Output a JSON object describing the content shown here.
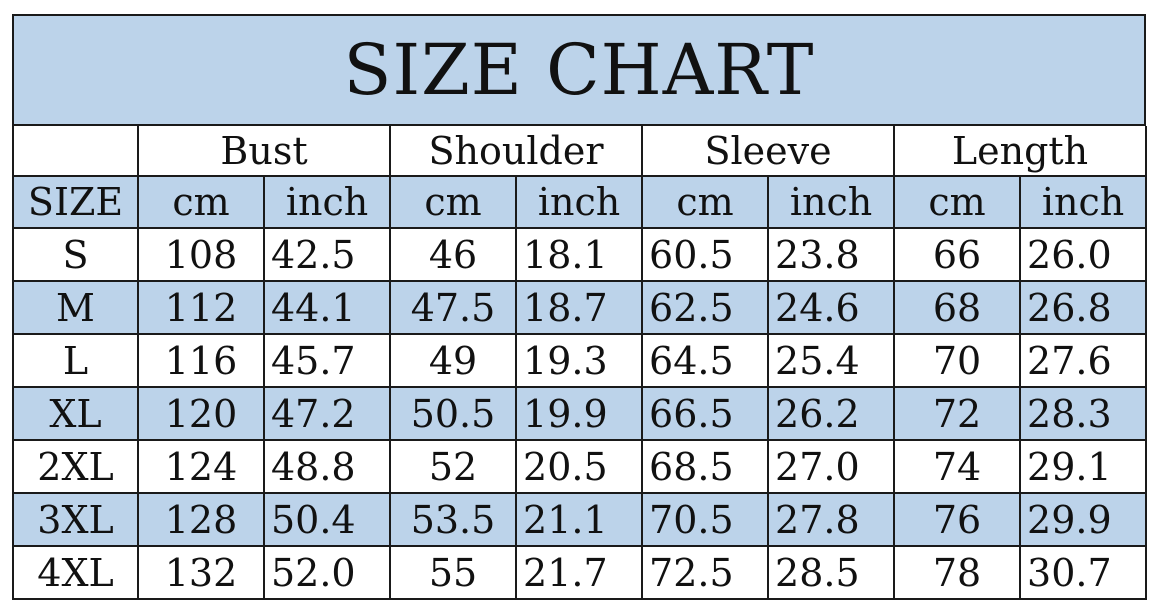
{
  "title": "SIZE CHART",
  "headers": {
    "groups": [
      "Bust",
      "Shoulder",
      "Sleeve",
      "Length"
    ],
    "size_label": "SIZE",
    "units": [
      "cm",
      "inch",
      "cm",
      "inch",
      "cm",
      "inch",
      "cm",
      "inch"
    ]
  },
  "rows": [
    {
      "size": "S",
      "cells": [
        "108",
        "42.5",
        "46",
        "18.1",
        "60.5",
        "23.8",
        "66",
        "26.0"
      ]
    },
    {
      "size": "M",
      "cells": [
        "112",
        "44.1",
        "47.5",
        "18.7",
        "62.5",
        "24.6",
        "68",
        "26.8"
      ]
    },
    {
      "size": "L",
      "cells": [
        "116",
        "45.7",
        "49",
        "19.3",
        "64.5",
        "25.4",
        "70",
        "27.6"
      ]
    },
    {
      "size": "XL",
      "cells": [
        "120",
        "47.2",
        "50.5",
        "19.9",
        "66.5",
        "26.2",
        "72",
        "28.3"
      ]
    },
    {
      "size": "2XL",
      "cells": [
        "124",
        "48.8",
        "52",
        "20.5",
        "68.5",
        "27.0",
        "74",
        "29.1"
      ]
    },
    {
      "size": "3XL",
      "cells": [
        "128",
        "50.4",
        "53.5",
        "21.1",
        "70.5",
        "27.8",
        "76",
        "29.9"
      ]
    },
    {
      "size": "4XL",
      "cells": [
        "132",
        "52.0",
        "55",
        "21.7",
        "72.5",
        "28.5",
        "78",
        "30.7"
      ]
    }
  ],
  "colors": {
    "header_fill": "#bcd3ea",
    "line": "#1a1a1a",
    "text": "#111111"
  }
}
